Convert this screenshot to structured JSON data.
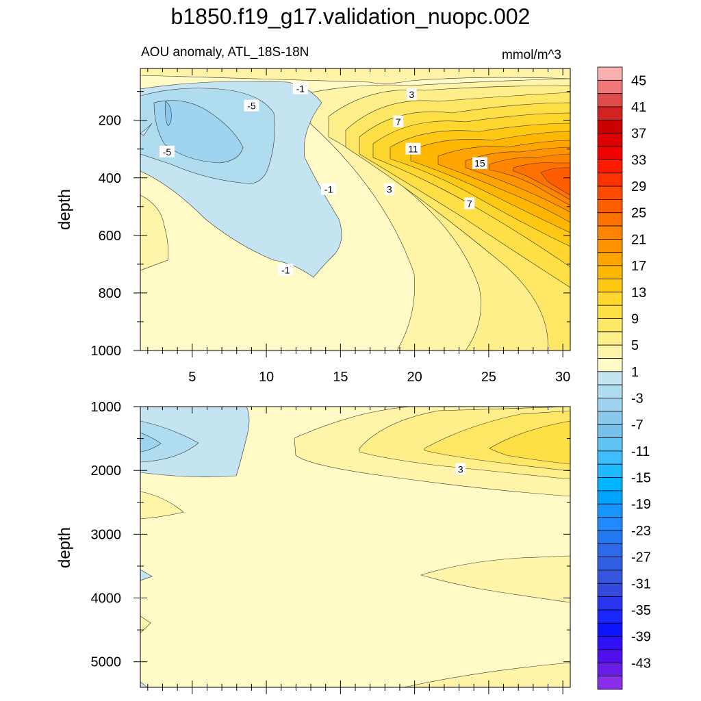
{
  "title": "b1850.f19_g17.validation_nuopc.002",
  "chart_data": [
    {
      "type": "contour",
      "panel": "upper",
      "left_label": "AOU anomaly, ATL_18S-18N",
      "right_label": "mmol/m^3",
      "ylabel": "depth",
      "xlabel": "",
      "xlim": [
        1.5,
        30.5
      ],
      "ylim": [
        1000,
        20
      ],
      "x_ticks": [
        5,
        10,
        15,
        20,
        25,
        30
      ],
      "x_tick_labels": [
        "5",
        "10",
        "15",
        "20",
        "25",
        "30"
      ],
      "y_ticks": [
        200,
        400,
        600,
        800,
        1000
      ],
      "y_tick_labels": [
        "200",
        "400",
        "600",
        "800",
        "1000"
      ],
      "contour_labels": [
        {
          "text": "-1",
          "x": 12.3,
          "y": 90
        },
        {
          "text": "-5",
          "x": 9.0,
          "y": 150
        },
        {
          "text": "-5",
          "x": 3.3,
          "y": 310
        },
        {
          "text": "3",
          "x": 19.8,
          "y": 110
        },
        {
          "text": "7",
          "x": 18.9,
          "y": 205
        },
        {
          "text": "11",
          "x": 19.9,
          "y": 300
        },
        {
          "text": "15",
          "x": 24.4,
          "y": 350
        },
        {
          "text": "-1",
          "x": 14.2,
          "y": 440
        },
        {
          "text": "3",
          "x": 18.3,
          "y": 440
        },
        {
          "text": "7",
          "x": 23.7,
          "y": 490
        },
        {
          "text": "-1",
          "x": 11.3,
          "y": 720
        }
      ]
    },
    {
      "type": "contour",
      "panel": "lower",
      "ylabel": "depth",
      "xlim": [
        1.5,
        30.5
      ],
      "ylim": [
        5400,
        1000
      ],
      "y_ticks": [
        1000,
        2000,
        3000,
        4000,
        5000
      ],
      "y_tick_labels": [
        "1000",
        "2000",
        "3000",
        "4000",
        "5000"
      ],
      "contour_labels": [
        {
          "text": "3",
          "x": 23.1,
          "y": 1980
        }
      ]
    }
  ],
  "colorbar": {
    "tick_labels": [
      "45",
      "41",
      "37",
      "33",
      "29",
      "25",
      "21",
      "17",
      "13",
      "9",
      "5",
      "1",
      "-3",
      "-7",
      "-11",
      "-15",
      "-19",
      "-23",
      "-27",
      "-31",
      "-35",
      "-39",
      "-43"
    ],
    "colors": [
      "#f9b0b0",
      "#f07878",
      "#e04c4c",
      "#d22323",
      "#cd0000",
      "#dc0000",
      "#f30000",
      "#ff1a00",
      "#ff3300",
      "#ff4a00",
      "#ff5e00",
      "#ff7100",
      "#ff8400",
      "#ff9400",
      "#ffa400",
      "#ffb600",
      "#ffc812",
      "#ffd62e",
      "#ffdf46",
      "#ffe766",
      "#ffef8a",
      "#fff4a8",
      "#fffac6",
      "#c4e4f2",
      "#b0dcf0",
      "#9ed4ef",
      "#8ac9ec",
      "#76c1ea",
      "#5fc3f1",
      "#3ebeff",
      "#1fbaff",
      "#00b5ff",
      "#00a4ff",
      "#1796ff",
      "#2188ff",
      "#2479f3",
      "#2d6ae9",
      "#3260e4",
      "#3656de",
      "#3549dd",
      "#2836ef",
      "#1b26fb",
      "#0f14ff",
      "#2f10f7",
      "#5010ee",
      "#6a1de8",
      "#8a2eea"
    ]
  }
}
